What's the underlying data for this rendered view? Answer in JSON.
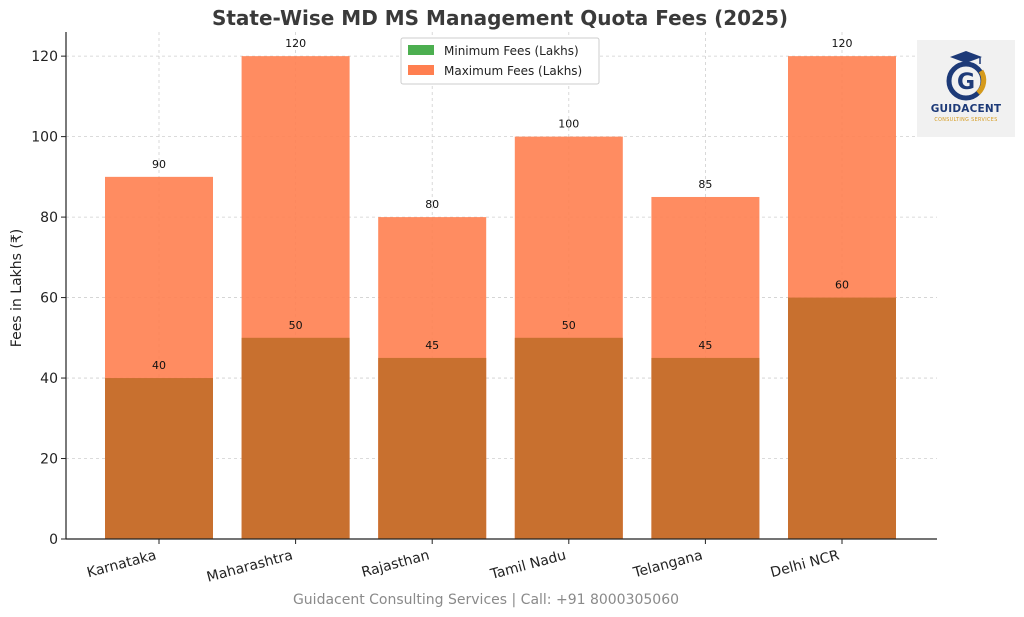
{
  "chart_data": {
    "type": "bar",
    "title": "State-Wise MD MS Management Quota Fees (2025)",
    "xlabel": "",
    "ylabel": "Fees in Lakhs (₹)",
    "categories": [
      "Karnataka",
      "Maharashtra",
      "Rajasthan",
      "Tamil Nadu",
      "Telangana",
      "Delhi NCR"
    ],
    "series": [
      {
        "name": "Minimum Fees (Lakhs)",
        "values": [
          40,
          50,
          45,
          50,
          45,
          60
        ],
        "color": "#4caf50"
      },
      {
        "name": "Maximum Fees (Lakhs)",
        "values": [
          90,
          120,
          80,
          100,
          85,
          120
        ],
        "color": "#ff7f50"
      }
    ],
    "overlap_color": "#c8702f",
    "ylim": [
      0,
      126
    ],
    "yticks": [
      0,
      20,
      40,
      60,
      80,
      100,
      120
    ],
    "grid": true,
    "legend_position": "top-center"
  },
  "footer": "Guidacent Consulting Services | Call: +91 8000305060",
  "logo": {
    "name": "GUIDACENT",
    "subtitle": "CONSULTING SERVICES",
    "accent_color": "#d59a1c",
    "brand_color": "#1d3a78"
  }
}
